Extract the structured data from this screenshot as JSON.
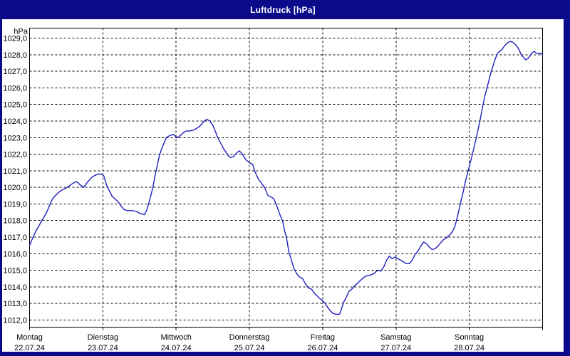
{
  "window": {
    "title": "Luftdruck [hPa]"
  },
  "colors": {
    "frame": "#0a0a8a",
    "title_text": "#ffffff",
    "plot_bg": "#ffffff",
    "grid": "#000000",
    "axis": "#000000",
    "line": "#2020c0",
    "text": "#000000"
  },
  "chart_data": {
    "type": "line",
    "title": "Luftdruck [hPa]",
    "y_unit_label": "hPa",
    "ylabel": "hPa",
    "ylim": [
      1012,
      1029
    ],
    "grid": "dashed",
    "legend": "none",
    "y_tick_values": [
      1029,
      1028,
      1027,
      1026,
      1025,
      1024,
      1023,
      1022,
      1021,
      1020,
      1019,
      1018,
      1017,
      1016,
      1015,
      1014,
      1013,
      1012
    ],
    "y_tick_labels": [
      "1029,0",
      "1028,0",
      "1027,0",
      "1026,0",
      "1025,0",
      "1024,0",
      "1023,0",
      "1022,0",
      "1021,0",
      "1020,0",
      "1019,0",
      "1018,0",
      "1017,0",
      "1016,0",
      "1015,0",
      "1014,0",
      "1013,0",
      "1012,0"
    ],
    "x_unit": "hours since Montag 22.07.24 00:00",
    "x_range_hours": [
      0,
      168
    ],
    "days": [
      {
        "name": "Montag",
        "date": "22.07.24"
      },
      {
        "name": "Dienstag",
        "date": "23.07.24"
      },
      {
        "name": "Mittwoch",
        "date": "24.07.24"
      },
      {
        "name": "Donnerstag",
        "date": "25.07.24"
      },
      {
        "name": "Freitag",
        "date": "26.07.24"
      },
      {
        "name": "Samstag",
        "date": "27.07.24"
      },
      {
        "name": "Sonntag",
        "date": "28.07.24"
      }
    ],
    "series": [
      {
        "name": "Luftdruck",
        "points": [
          [
            0,
            1016.5
          ],
          [
            0.9,
            1016.9
          ],
          [
            1.9,
            1017.3
          ],
          [
            2.8,
            1017.6
          ],
          [
            3.7,
            1017.9
          ],
          [
            4.7,
            1018.2
          ],
          [
            5.6,
            1018.5
          ],
          [
            6.5,
            1018.9
          ],
          [
            7.5,
            1019.3
          ],
          [
            8.4,
            1019.5
          ],
          [
            9.6,
            1019.7
          ],
          [
            10.7,
            1019.85
          ],
          [
            11.9,
            1019.95
          ],
          [
            13.1,
            1020.1
          ],
          [
            14.2,
            1020.25
          ],
          [
            15.4,
            1020.35
          ],
          [
            16.6,
            1020.15
          ],
          [
            17.7,
            1020.0
          ],
          [
            18.9,
            1020.3
          ],
          [
            20.1,
            1020.55
          ],
          [
            21.2,
            1020.7
          ],
          [
            22.4,
            1020.8
          ],
          [
            23.6,
            1020.8
          ],
          [
            24.3,
            1020.7
          ],
          [
            25.2,
            1020.15
          ],
          [
            26.1,
            1019.8
          ],
          [
            27.1,
            1019.45
          ],
          [
            28.0,
            1019.3
          ],
          [
            28.9,
            1019.15
          ],
          [
            29.9,
            1018.9
          ],
          [
            31.0,
            1018.65
          ],
          [
            32.2,
            1018.6
          ],
          [
            33.6,
            1018.6
          ],
          [
            35.0,
            1018.55
          ],
          [
            35.9,
            1018.45
          ],
          [
            36.9,
            1018.4
          ],
          [
            37.6,
            1018.35
          ],
          [
            38.3,
            1018.6
          ],
          [
            39.0,
            1019.0
          ],
          [
            39.7,
            1019.5
          ],
          [
            40.4,
            1020.0
          ],
          [
            41.1,
            1020.7
          ],
          [
            41.8,
            1021.3
          ],
          [
            42.5,
            1021.9
          ],
          [
            43.4,
            1022.4
          ],
          [
            44.1,
            1022.7
          ],
          [
            44.8,
            1023.0
          ],
          [
            45.7,
            1023.1
          ],
          [
            46.4,
            1023.15
          ],
          [
            47.1,
            1023.2
          ],
          [
            47.6,
            1023.1
          ],
          [
            48.5,
            1023.0
          ],
          [
            49.5,
            1023.15
          ],
          [
            50.4,
            1023.3
          ],
          [
            51.3,
            1023.4
          ],
          [
            52.5,
            1023.4
          ],
          [
            53.7,
            1023.45
          ],
          [
            54.6,
            1023.55
          ],
          [
            55.5,
            1023.65
          ],
          [
            56.5,
            1023.85
          ],
          [
            57.2,
            1024.0
          ],
          [
            58.1,
            1024.1
          ],
          [
            59.0,
            1024.0
          ],
          [
            60.0,
            1023.75
          ],
          [
            60.9,
            1023.35
          ],
          [
            61.6,
            1023.0
          ],
          [
            62.5,
            1022.7
          ],
          [
            63.5,
            1022.35
          ],
          [
            64.4,
            1022.1
          ],
          [
            65.1,
            1021.9
          ],
          [
            65.8,
            1021.8
          ],
          [
            66.7,
            1021.85
          ],
          [
            67.7,
            1022.05
          ],
          [
            68.6,
            1022.2
          ],
          [
            69.3,
            1022.1
          ],
          [
            70.2,
            1021.85
          ],
          [
            70.9,
            1021.65
          ],
          [
            71.6,
            1021.55
          ],
          [
            72.3,
            1021.45
          ],
          [
            73.0,
            1021.4
          ],
          [
            73.7,
            1021.0
          ],
          [
            74.4,
            1020.7
          ],
          [
            75.1,
            1020.45
          ],
          [
            75.8,
            1020.3
          ],
          [
            76.5,
            1020.1
          ],
          [
            77.2,
            1019.9
          ],
          [
            77.9,
            1019.55
          ],
          [
            78.6,
            1019.45
          ],
          [
            79.3,
            1019.4
          ],
          [
            80.0,
            1019.3
          ],
          [
            80.7,
            1019.0
          ],
          [
            81.4,
            1018.65
          ],
          [
            82.1,
            1018.3
          ],
          [
            82.8,
            1018.0
          ],
          [
            83.5,
            1017.4
          ],
          [
            84.2,
            1016.9
          ],
          [
            84.9,
            1016.1
          ],
          [
            85.6,
            1015.7
          ],
          [
            86.6,
            1015.1
          ],
          [
            87.5,
            1014.8
          ],
          [
            88.4,
            1014.6
          ],
          [
            89.4,
            1014.5
          ],
          [
            90.3,
            1014.2
          ],
          [
            91.0,
            1014.0
          ],
          [
            91.7,
            1013.9
          ],
          [
            92.4,
            1013.85
          ],
          [
            93.3,
            1013.6
          ],
          [
            94.0,
            1013.5
          ],
          [
            94.7,
            1013.35
          ],
          [
            95.7,
            1013.2
          ],
          [
            96.6,
            1013.05
          ],
          [
            97.5,
            1012.8
          ],
          [
            98.5,
            1012.55
          ],
          [
            99.4,
            1012.4
          ],
          [
            100.3,
            1012.35
          ],
          [
            101.5,
            1012.35
          ],
          [
            102.2,
            1012.7
          ],
          [
            102.9,
            1013.1
          ],
          [
            103.8,
            1013.4
          ],
          [
            104.5,
            1013.7
          ],
          [
            105.7,
            1013.9
          ],
          [
            106.6,
            1014.1
          ],
          [
            107.6,
            1014.25
          ],
          [
            108.7,
            1014.45
          ],
          [
            109.7,
            1014.6
          ],
          [
            110.6,
            1014.68
          ],
          [
            111.5,
            1014.7
          ],
          [
            112.7,
            1014.8
          ],
          [
            113.6,
            1014.95
          ],
          [
            114.3,
            1015.0
          ],
          [
            115.0,
            1014.95
          ],
          [
            116.0,
            1015.2
          ],
          [
            116.9,
            1015.6
          ],
          [
            117.8,
            1015.85
          ],
          [
            118.8,
            1015.7
          ],
          [
            119.7,
            1015.8
          ],
          [
            120.6,
            1015.7
          ],
          [
            121.6,
            1015.6
          ],
          [
            122.5,
            1015.5
          ],
          [
            123.4,
            1015.4
          ],
          [
            124.4,
            1015.4
          ],
          [
            125.3,
            1015.6
          ],
          [
            126.2,
            1015.95
          ],
          [
            127.2,
            1016.15
          ],
          [
            128.1,
            1016.45
          ],
          [
            129.0,
            1016.7
          ],
          [
            130.0,
            1016.6
          ],
          [
            130.9,
            1016.4
          ],
          [
            131.8,
            1016.25
          ],
          [
            132.8,
            1016.3
          ],
          [
            133.7,
            1016.45
          ],
          [
            134.6,
            1016.65
          ],
          [
            135.6,
            1016.85
          ],
          [
            136.5,
            1016.95
          ],
          [
            137.4,
            1017.1
          ],
          [
            138.4,
            1017.3
          ],
          [
            139.3,
            1017.65
          ],
          [
            140.2,
            1018.3
          ],
          [
            141.2,
            1019.1
          ],
          [
            142.1,
            1019.8
          ],
          [
            142.8,
            1020.4
          ],
          [
            143.5,
            1020.9
          ],
          [
            144.2,
            1021.4
          ],
          [
            144.9,
            1021.9
          ],
          [
            145.6,
            1022.45
          ],
          [
            146.3,
            1023.0
          ],
          [
            147.0,
            1023.6
          ],
          [
            147.7,
            1024.2
          ],
          [
            148.4,
            1024.9
          ],
          [
            149.1,
            1025.5
          ],
          [
            149.8,
            1026.0
          ],
          [
            150.5,
            1026.5
          ],
          [
            151.2,
            1027.0
          ],
          [
            151.9,
            1027.4
          ],
          [
            152.6,
            1027.8
          ],
          [
            153.3,
            1028.1
          ],
          [
            154.0,
            1028.2
          ],
          [
            154.7,
            1028.3
          ],
          [
            155.4,
            1028.5
          ],
          [
            156.1,
            1028.65
          ],
          [
            156.8,
            1028.75
          ],
          [
            157.5,
            1028.8
          ],
          [
            158.2,
            1028.75
          ],
          [
            158.9,
            1028.65
          ],
          [
            159.6,
            1028.5
          ],
          [
            160.3,
            1028.3
          ],
          [
            161.0,
            1028.0
          ],
          [
            161.7,
            1027.85
          ],
          [
            162.4,
            1027.7
          ],
          [
            163.1,
            1027.75
          ],
          [
            163.8,
            1027.9
          ],
          [
            164.5,
            1028.1
          ],
          [
            165.2,
            1028.2
          ],
          [
            165.9,
            1028.1
          ],
          [
            166.6,
            1028.05
          ],
          [
            167.3,
            1028.1
          ],
          [
            168.0,
            1028.0
          ]
        ]
      }
    ]
  }
}
